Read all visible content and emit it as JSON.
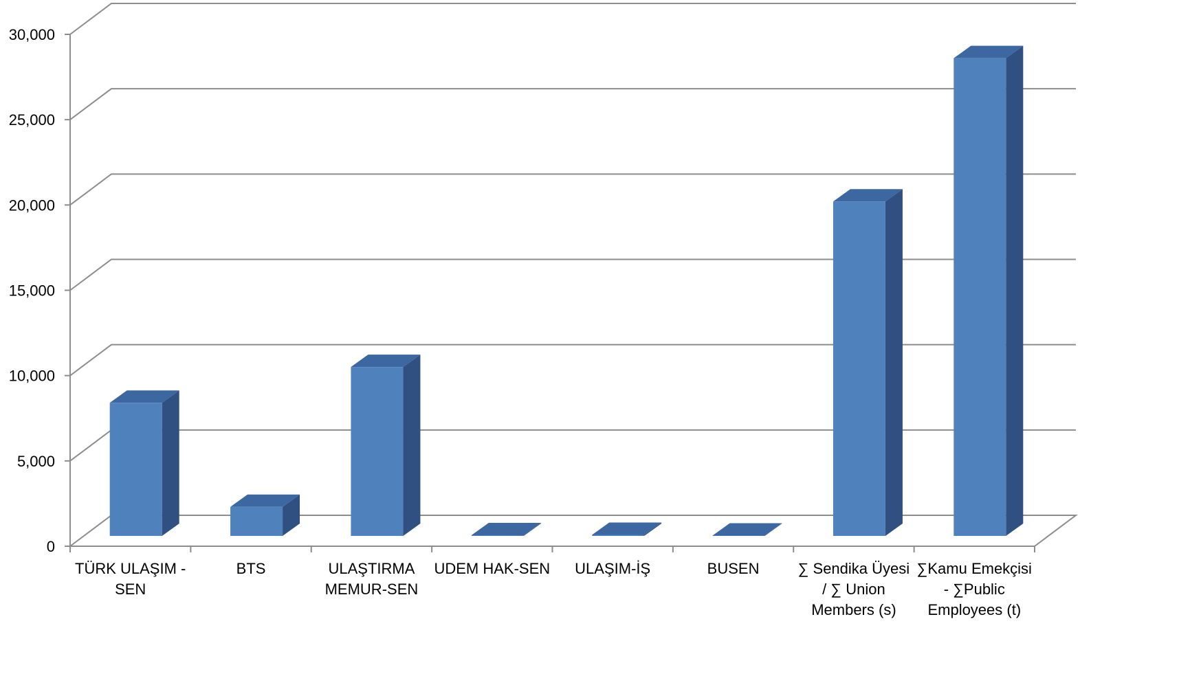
{
  "chart_data": {
    "type": "bar",
    "categories": [
      [
        "TÜRK ULAŞIM -",
        "SEN"
      ],
      [
        "BTS"
      ],
      [
        "ULAŞTIRMA",
        "MEMUR-SEN"
      ],
      [
        "UDEM HAK-SEN"
      ],
      [
        "ULAŞIM-İŞ"
      ],
      [
        "BUSEN"
      ],
      [
        "∑ Sendika Üyesi",
        "/ ∑ Union",
        "Members (s)"
      ],
      [
        "∑Kamu Emekçisi",
        "- ∑Public",
        "Employees (t)"
      ]
    ],
    "values": [
      7800,
      1700,
      9900,
      40,
      60,
      20,
      19600,
      28000
    ],
    "ylim": [
      0,
      30000
    ],
    "yticks": [
      "0",
      "5,000",
      "10,000",
      "15,000",
      "20,000",
      "25,000",
      "30,000"
    ],
    "ytick_values": [
      0,
      5000,
      10000,
      15000,
      20000,
      25000,
      30000
    ],
    "title": "",
    "xlabel": "",
    "ylabel": "",
    "grid": true,
    "style": "3d-column",
    "colors": {
      "bar_front": "#4f81bd",
      "bar_top": "#3d67a0",
      "bar_side": "#2f5080",
      "grid": "#8c8c8c"
    }
  }
}
